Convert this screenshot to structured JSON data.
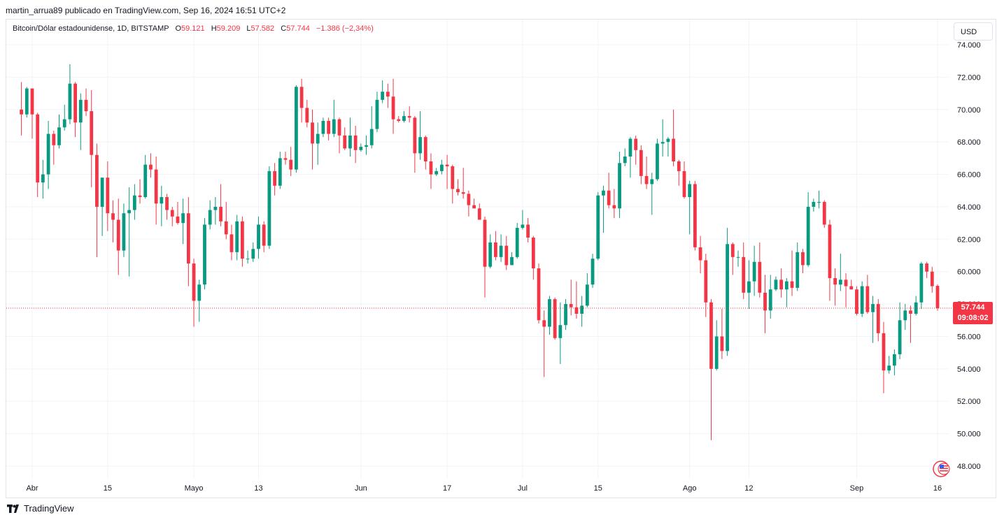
{
  "header": {
    "text": "martin_arrua89 publicado en TradingView.com, Sep 16, 2024 16:51 UTC+2"
  },
  "legend": {
    "symbol": "Bitcoin/Dólar estadounidense, 1D, BITSTAMP",
    "open_label": "O",
    "open_value": "59.121",
    "high_label": "H",
    "high_value": "59.209",
    "low_label": "L",
    "low_value": "57.582",
    "close_label": "C",
    "close_value": "57.744",
    "change": "−1.386 (−2,34%)"
  },
  "currency_button": "USD",
  "last_price": {
    "price": "57.744",
    "countdown": "09:08:02"
  },
  "footer": {
    "brand": "TradingView"
  },
  "colors": {
    "up": "#089981",
    "down": "#f23645",
    "grid": "#f0f3fa",
    "axis_text": "#131722"
  },
  "chart_data": {
    "type": "candlestick",
    "title": "Bitcoin/Dólar estadounidense, 1D, BITSTAMP",
    "ylim": [
      47000,
      75500
    ],
    "y_ticks": [
      48000,
      50000,
      52000,
      54000,
      56000,
      58000,
      60000,
      62000,
      64000,
      66000,
      68000,
      70000,
      72000,
      74000
    ],
    "y_tick_labels": [
      "48.000",
      "50.000",
      "52.000",
      "54.000",
      "56.000",
      "58.000",
      "60.000",
      "62.000",
      "64.000",
      "66.000",
      "68.000",
      "70.000",
      "72.000",
      "74.000"
    ],
    "x_tick_labels": [
      "Abr",
      "15",
      "Mayo",
      "13",
      "Jun",
      "17",
      "Jul",
      "15",
      "Ago",
      "12",
      "Sep",
      "16"
    ],
    "x_tick_dates": [
      "2024-04-01",
      "2024-04-15",
      "2024-05-01",
      "2024-05-13",
      "2024-06-01",
      "2024-06-17",
      "2024-07-01",
      "2024-07-15",
      "2024-08-01",
      "2024-08-12",
      "2024-09-01",
      "2024-09-16"
    ],
    "last_price": 57744,
    "ohlc_columns": [
      "date",
      "open",
      "high",
      "low",
      "close"
    ],
    "candles": [
      [
        "2024-03-30",
        70000,
        71700,
        68400,
        69700
      ],
      [
        "2024-03-31",
        69700,
        71400,
        69500,
        71300
      ],
      [
        "2024-04-01",
        71300,
        71300,
        68200,
        69700
      ],
      [
        "2024-04-02",
        69700,
        69800,
        64600,
        65500
      ],
      [
        "2024-04-03",
        65500,
        66900,
        64500,
        66000
      ],
      [
        "2024-04-04",
        66000,
        69300,
        65100,
        68500
      ],
      [
        "2024-04-05",
        68500,
        68700,
        66600,
        67800
      ],
      [
        "2024-04-06",
        67800,
        69700,
        67600,
        68900
      ],
      [
        "2024-04-07",
        68900,
        70300,
        68700,
        69400
      ],
      [
        "2024-04-08",
        69400,
        72800,
        69100,
        71600
      ],
      [
        "2024-04-09",
        71600,
        71700,
        68300,
        69200
      ],
      [
        "2024-04-10",
        69200,
        71000,
        67500,
        70600
      ],
      [
        "2024-04-11",
        70600,
        71300,
        69600,
        69900
      ],
      [
        "2024-04-12",
        69900,
        71200,
        65200,
        67200
      ],
      [
        "2024-04-13",
        67200,
        67900,
        60900,
        64000
      ],
      [
        "2024-04-14",
        64000,
        65800,
        62200,
        65800
      ],
      [
        "2024-04-15",
        65800,
        66800,
        62500,
        63600
      ],
      [
        "2024-04-16",
        63600,
        64400,
        61800,
        63200
      ],
      [
        "2024-04-17",
        63200,
        64500,
        59800,
        61300
      ],
      [
        "2024-04-18",
        61300,
        64200,
        60900,
        63600
      ],
      [
        "2024-04-19",
        63600,
        65200,
        59700,
        63800
      ],
      [
        "2024-04-20",
        63800,
        65400,
        63200,
        64700
      ],
      [
        "2024-04-21",
        64700,
        65700,
        64200,
        64600
      ],
      [
        "2024-04-22",
        64600,
        67200,
        64500,
        66600
      ],
      [
        "2024-04-23",
        66600,
        67300,
        65800,
        66300
      ],
      [
        "2024-04-24",
        66300,
        67100,
        62900,
        64200
      ],
      [
        "2024-04-25",
        64200,
        65300,
        62800,
        64600
      ],
      [
        "2024-04-26",
        64600,
        64800,
        63200,
        63800
      ],
      [
        "2024-04-27",
        63800,
        64000,
        62800,
        63400
      ],
      [
        "2024-04-28",
        63400,
        64300,
        62900,
        63000
      ],
      [
        "2024-04-29",
        63000,
        64500,
        61700,
        63600
      ],
      [
        "2024-04-30",
        63600,
        64600,
        59100,
        60500
      ],
      [
        "2024-05-01",
        60500,
        60800,
        56600,
        58200
      ],
      [
        "2024-05-02",
        58200,
        59500,
        56900,
        59200
      ],
      [
        "2024-05-03",
        59200,
        63300,
        58900,
        62900
      ],
      [
        "2024-05-04",
        62900,
        64400,
        62600,
        63800
      ],
      [
        "2024-05-05",
        63800,
        64600,
        62900,
        64000
      ],
      [
        "2024-05-06",
        64000,
        65400,
        62800,
        63100
      ],
      [
        "2024-05-07",
        63100,
        64300,
        62000,
        62300
      ],
      [
        "2024-05-08",
        62300,
        62900,
        60700,
        61200
      ],
      [
        "2024-05-09",
        61200,
        63500,
        60700,
        63100
      ],
      [
        "2024-05-10",
        63100,
        63400,
        60300,
        60800
      ],
      [
        "2024-05-11",
        60800,
        61300,
        60500,
        60800
      ],
      [
        "2024-05-12",
        60800,
        61800,
        60600,
        61400
      ],
      [
        "2024-05-13",
        61400,
        63400,
        60800,
        62900
      ],
      [
        "2024-05-14",
        62900,
        63100,
        61200,
        61600
      ],
      [
        "2024-05-15",
        61600,
        66500,
        61400,
        66200
      ],
      [
        "2024-05-16",
        66200,
        66700,
        64700,
        65300
      ],
      [
        "2024-05-17",
        65300,
        67400,
        65100,
        67000
      ],
      [
        "2024-05-18",
        67000,
        67400,
        66600,
        66900
      ],
      [
        "2024-05-19",
        66900,
        67700,
        65900,
        66300
      ],
      [
        "2024-05-20",
        66300,
        71500,
        66100,
        71400
      ],
      [
        "2024-05-21",
        71400,
        71900,
        69200,
        70100
      ],
      [
        "2024-05-22",
        70100,
        70600,
        68900,
        69200
      ],
      [
        "2024-05-23",
        69200,
        70000,
        66300,
        67900
      ],
      [
        "2024-05-24",
        67900,
        69200,
        66600,
        68500
      ],
      [
        "2024-05-25",
        68500,
        69500,
        68300,
        69300
      ],
      [
        "2024-05-26",
        69300,
        69500,
        68100,
        68500
      ],
      [
        "2024-05-27",
        68500,
        70600,
        68300,
        69400
      ],
      [
        "2024-05-28",
        69400,
        69500,
        67300,
        68400
      ],
      [
        "2024-05-29",
        68400,
        68900,
        67500,
        67600
      ],
      [
        "2024-05-30",
        67600,
        69500,
        67100,
        68400
      ],
      [
        "2024-05-31",
        68400,
        69000,
        66700,
        67500
      ],
      [
        "2024-06-01",
        67500,
        67900,
        67400,
        67700
      ],
      [
        "2024-06-02",
        67700,
        68400,
        67200,
        67800
      ],
      [
        "2024-06-03",
        67800,
        70200,
        67600,
        68800
      ],
      [
        "2024-06-04",
        68800,
        71100,
        68600,
        70600
      ],
      [
        "2024-06-05",
        70600,
        71800,
        70400,
        71100
      ],
      [
        "2024-06-06",
        71100,
        71600,
        70100,
        70800
      ],
      [
        "2024-06-07",
        70800,
        71900,
        68500,
        69400
      ],
      [
        "2024-06-08",
        69400,
        69600,
        69200,
        69300
      ],
      [
        "2024-06-09",
        69300,
        69900,
        69200,
        69600
      ],
      [
        "2024-06-10",
        69600,
        70200,
        69200,
        69500
      ],
      [
        "2024-06-11",
        69500,
        69600,
        66100,
        67300
      ],
      [
        "2024-06-12",
        67300,
        69900,
        66900,
        68300
      ],
      [
        "2024-06-13",
        68300,
        68400,
        66300,
        66800
      ],
      [
        "2024-06-14",
        66800,
        67300,
        65100,
        66000
      ],
      [
        "2024-06-15",
        66000,
        66400,
        65900,
        66200
      ],
      [
        "2024-06-16",
        66200,
        66900,
        66000,
        66600
      ],
      [
        "2024-06-17",
        66600,
        67200,
        65100,
        66500
      ],
      [
        "2024-06-18",
        66500,
        66600,
        64200,
        65100
      ],
      [
        "2024-06-19",
        65100,
        65700,
        64700,
        64900
      ],
      [
        "2024-06-20",
        64900,
        66400,
        64500,
        64800
      ],
      [
        "2024-06-21",
        64800,
        65000,
        63400,
        64100
      ],
      [
        "2024-06-22",
        64100,
        64500,
        63900,
        63900
      ],
      [
        "2024-06-23",
        63900,
        64200,
        63200,
        63200
      ],
      [
        "2024-06-24",
        63200,
        63400,
        58400,
        60300
      ],
      [
        "2024-06-25",
        60300,
        62300,
        60200,
        61800
      ],
      [
        "2024-06-26",
        61800,
        62500,
        60700,
        60900
      ],
      [
        "2024-06-27",
        60900,
        62300,
        60600,
        61600
      ],
      [
        "2024-06-28",
        61600,
        62200,
        60100,
        60400
      ],
      [
        "2024-06-29",
        60400,
        61200,
        60400,
        60900
      ],
      [
        "2024-06-30",
        60900,
        63000,
        60800,
        62700
      ],
      [
        "2024-07-01",
        62700,
        63800,
        62600,
        62900
      ],
      [
        "2024-07-02",
        62900,
        63300,
        61800,
        62100
      ],
      [
        "2024-07-03",
        62100,
        62200,
        59500,
        60200
      ],
      [
        "2024-07-04",
        60200,
        60500,
        56800,
        57000
      ],
      [
        "2024-07-05",
        57000,
        57600,
        53500,
        56600
      ],
      [
        "2024-07-06",
        56600,
        58500,
        56100,
        58300
      ],
      [
        "2024-07-07",
        58300,
        58400,
        55800,
        55900
      ],
      [
        "2024-07-08",
        55900,
        58100,
        54300,
        56700
      ],
      [
        "2024-07-09",
        56700,
        58300,
        56400,
        58000
      ],
      [
        "2024-07-10",
        58000,
        59500,
        57300,
        57800
      ],
      [
        "2024-07-11",
        57800,
        59400,
        57100,
        57400
      ],
      [
        "2024-07-12",
        57400,
        58500,
        56600,
        57900
      ],
      [
        "2024-07-13",
        57900,
        59900,
        57800,
        59200
      ],
      [
        "2024-07-14",
        59200,
        61100,
        59000,
        60800
      ],
      [
        "2024-07-15",
        60800,
        64900,
        60700,
        64700
      ],
      [
        "2024-07-16",
        64700,
        65300,
        62400,
        65000
      ],
      [
        "2024-07-17",
        65000,
        66100,
        63900,
        64100
      ],
      [
        "2024-07-18",
        64100,
        65100,
        63300,
        63900
      ],
      [
        "2024-07-19",
        63900,
        67400,
        63300,
        66700
      ],
      [
        "2024-07-20",
        66700,
        67600,
        66500,
        67100
      ],
      [
        "2024-07-21",
        67100,
        68300,
        65800,
        68200
      ],
      [
        "2024-07-22",
        68200,
        68400,
        66600,
        67500
      ],
      [
        "2024-07-23",
        67500,
        67800,
        65400,
        65900
      ],
      [
        "2024-07-24",
        65900,
        67100,
        65100,
        65400
      ],
      [
        "2024-07-25",
        65400,
        66100,
        63500,
        65700
      ],
      [
        "2024-07-26",
        65700,
        68200,
        65600,
        67900
      ],
      [
        "2024-07-27",
        67900,
        69400,
        67100,
        68000
      ],
      [
        "2024-07-28",
        68000,
        68300,
        67100,
        68200
      ],
      [
        "2024-07-29",
        68200,
        70000,
        66500,
        66800
      ],
      [
        "2024-07-30",
        66800,
        66900,
        65300,
        66200
      ],
      [
        "2024-07-31",
        66200,
        66800,
        64500,
        64600
      ],
      [
        "2024-08-01",
        64600,
        65600,
        62300,
        65400
      ],
      [
        "2024-08-02",
        65400,
        65600,
        61300,
        61500
      ],
      [
        "2024-08-03",
        61500,
        62200,
        59900,
        60700
      ],
      [
        "2024-08-04",
        60700,
        61100,
        57200,
        58100
      ],
      [
        "2024-08-05",
        58100,
        58300,
        49600,
        54000
      ],
      [
        "2024-08-06",
        54000,
        57000,
        53900,
        56000
      ],
      [
        "2024-08-07",
        56000,
        57700,
        54600,
        55100
      ],
      [
        "2024-08-08",
        55100,
        62700,
        54800,
        61700
      ],
      [
        "2024-08-09",
        61700,
        61800,
        59800,
        60900
      ],
      [
        "2024-08-10",
        60900,
        61300,
        60300,
        60900
      ],
      [
        "2024-08-11",
        60900,
        61800,
        58300,
        58700
      ],
      [
        "2024-08-12",
        58700,
        60700,
        57700,
        59400
      ],
      [
        "2024-08-13",
        59400,
        61600,
        58500,
        60600
      ],
      [
        "2024-08-14",
        60600,
        61800,
        58400,
        58700
      ],
      [
        "2024-08-15",
        58700,
        59800,
        56200,
        57600
      ],
      [
        "2024-08-16",
        57600,
        59800,
        57100,
        58900
      ],
      [
        "2024-08-17",
        58900,
        59700,
        58800,
        59500
      ],
      [
        "2024-08-18",
        59500,
        60200,
        58400,
        58900
      ],
      [
        "2024-08-19",
        58900,
        59600,
        57800,
        59400
      ],
      [
        "2024-08-20",
        59400,
        61300,
        58500,
        59000
      ],
      [
        "2024-08-21",
        59000,
        61800,
        58800,
        61200
      ],
      [
        "2024-08-22",
        61200,
        61400,
        59900,
        60400
      ],
      [
        "2024-08-23",
        60400,
        64900,
        60300,
        64000
      ],
      [
        "2024-08-24",
        64000,
        64500,
        63700,
        64300
      ],
      [
        "2024-08-25",
        64300,
        65000,
        63900,
        64300
      ],
      [
        "2024-08-26",
        64300,
        64400,
        62700,
        62900
      ],
      [
        "2024-08-27",
        62900,
        63200,
        58200,
        59600
      ],
      [
        "2024-08-28",
        59600,
        60200,
        57900,
        59200
      ],
      [
        "2024-08-29",
        59200,
        61100,
        58800,
        59500
      ],
      [
        "2024-08-30",
        59500,
        59900,
        57800,
        59100
      ],
      [
        "2024-08-31",
        59100,
        59500,
        58900,
        58900
      ],
      [
        "2024-09-01",
        58900,
        59100,
        57300,
        57400
      ],
      [
        "2024-09-02",
        57400,
        59400,
        57200,
        59100
      ],
      [
        "2024-09-03",
        59100,
        59800,
        57400,
        57500
      ],
      [
        "2024-09-04",
        57500,
        58500,
        55600,
        58000
      ],
      [
        "2024-09-05",
        58000,
        58300,
        55700,
        56200
      ],
      [
        "2024-09-06",
        56200,
        56900,
        52500,
        53900
      ],
      [
        "2024-09-07",
        53900,
        54800,
        53700,
        54200
      ],
      [
        "2024-09-08",
        54200,
        55200,
        53600,
        54900
      ],
      [
        "2024-09-09",
        54900,
        58100,
        54600,
        57000
      ],
      [
        "2024-09-10",
        57000,
        58000,
        56400,
        57600
      ],
      [
        "2024-09-11",
        57600,
        57900,
        55600,
        57400
      ],
      [
        "2024-09-12",
        57400,
        58500,
        57300,
        58100
      ],
      [
        "2024-09-13",
        58100,
        60600,
        57700,
        60500
      ],
      [
        "2024-09-14",
        60500,
        60600,
        59600,
        60000
      ],
      [
        "2024-09-15",
        60000,
        60300,
        58700,
        59100
      ],
      [
        "2024-09-16",
        59121,
        59209,
        57582,
        57744
      ]
    ]
  }
}
